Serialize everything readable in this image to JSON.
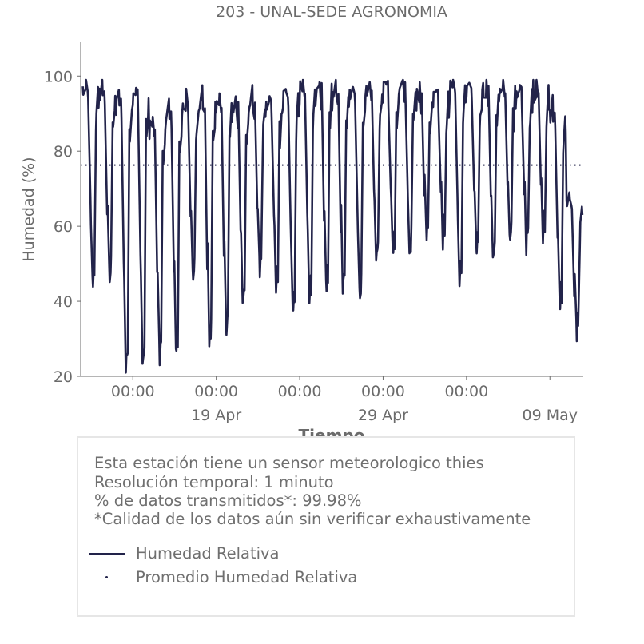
{
  "chart_data": {
    "type": "line",
    "title": "203 - UNAL-SEDE AGRONOMIA",
    "xlabel": "Tiempo",
    "ylabel": "Humedad (%)",
    "ylim": [
      20,
      109
    ],
    "xlim": [
      "2025-04-10T21:00",
      "2025-05-11T00:00"
    ],
    "yticks": [
      20,
      40,
      60,
      80,
      100
    ],
    "xticks": [
      {
        "x": "2025-04-14T00:00",
        "label": "00:00",
        "sublabel": ""
      },
      {
        "x": "2025-04-19T00:00",
        "label": "00:00",
        "sublabel": "19 Apr"
      },
      {
        "x": "2025-04-24T00:00",
        "label": "00:00",
        "sublabel": ""
      },
      {
        "x": "2025-04-29T00:00",
        "label": "00:00",
        "sublabel": "29 Apr"
      },
      {
        "x": "2025-05-04T00:00",
        "label": "00:00",
        "sublabel": ""
      },
      {
        "x": "2025-05-09T00:00",
        "label": "",
        "sublabel": "09 May"
      }
    ],
    "grid": false,
    "series": [
      {
        "name": "Humedad Relativa",
        "style": "solid",
        "color": "#22234a",
        "daily_peak_trough": [
          {
            "date": "2025-04-11",
            "max": 98,
            "min": 45
          },
          {
            "date": "2025-04-12",
            "max": 97,
            "min": 47
          },
          {
            "date": "2025-04-13",
            "max": 94,
            "min": 23
          },
          {
            "date": "2025-04-14",
            "max": 96,
            "min": 24
          },
          {
            "date": "2025-04-15",
            "max": 88,
            "min": 26
          },
          {
            "date": "2025-04-16",
            "max": 91,
            "min": 27
          },
          {
            "date": "2025-04-17",
            "max": 94,
            "min": 47
          },
          {
            "date": "2025-04-18",
            "max": 94,
            "min": 30
          },
          {
            "date": "2025-04-19",
            "max": 94,
            "min": 33
          },
          {
            "date": "2025-04-20",
            "max": 93,
            "min": 40
          },
          {
            "date": "2025-04-21",
            "max": 94,
            "min": 49
          },
          {
            "date": "2025-04-22",
            "max": 94,
            "min": 44
          },
          {
            "date": "2025-04-23",
            "max": 96,
            "min": 38
          },
          {
            "date": "2025-04-24",
            "max": 98,
            "min": 41
          },
          {
            "date": "2025-04-25",
            "max": 98,
            "min": 44
          },
          {
            "date": "2025-04-26",
            "max": 97,
            "min": 44
          },
          {
            "date": "2025-04-27",
            "max": 97,
            "min": 42
          },
          {
            "date": "2025-04-28",
            "max": 98,
            "min": 52
          },
          {
            "date": "2025-04-29",
            "max": 98,
            "min": 53
          },
          {
            "date": "2025-04-30",
            "max": 99,
            "min": 54
          },
          {
            "date": "2025-05-01",
            "max": 96,
            "min": 58
          },
          {
            "date": "2025-05-02",
            "max": 96,
            "min": 57
          },
          {
            "date": "2025-05-03",
            "max": 99,
            "min": 46
          },
          {
            "date": "2025-05-04",
            "max": 98,
            "min": 54
          },
          {
            "date": "2025-05-05",
            "max": 98,
            "min": 52
          },
          {
            "date": "2025-05-06",
            "max": 98,
            "min": 57
          },
          {
            "date": "2025-05-07",
            "max": 97,
            "min": 56
          },
          {
            "date": "2025-05-08",
            "max": 98,
            "min": 58
          },
          {
            "date": "2025-05-09",
            "max": 91,
            "min": 39
          },
          {
            "date": "2025-05-10",
            "max": 68,
            "min": 32
          }
        ]
      },
      {
        "name": "Promedio Humedad Relativa",
        "style": "dotted",
        "color": "#22234a",
        "value": 76.3
      }
    ]
  },
  "info": {
    "lines": [
      "Esta estación tiene un sensor meteorologico thies",
      "Resolución temporal: 1 minuto",
      "% de datos transmitidos*: 99.98%",
      "*Calidad de los datos aún sin verificar exhaustivamente"
    ]
  },
  "legend": {
    "items": [
      "Humedad Relativa",
      "Promedio Humedad Relativa"
    ]
  },
  "colors": {
    "series": "#22234a",
    "axis": "#6b6b6b",
    "text": "#6f6f6f"
  }
}
